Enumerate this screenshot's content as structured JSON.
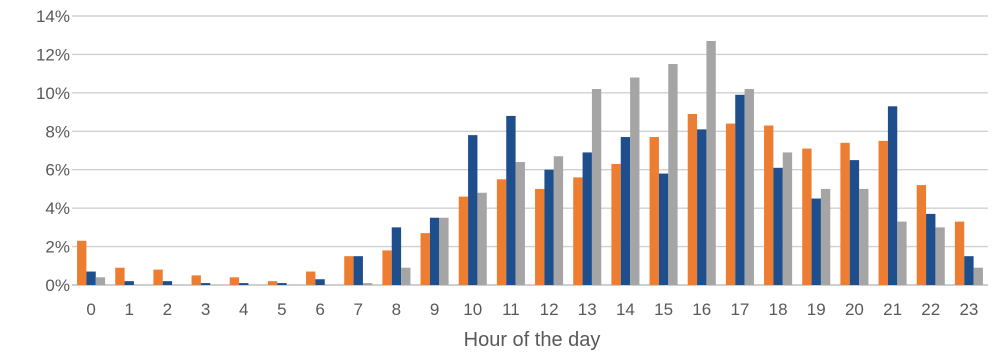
{
  "chart_data": {
    "type": "bar",
    "title": "",
    "xlabel": "Hour of the day",
    "ylabel": "",
    "ylim": [
      0,
      14
    ],
    "y_ticks": [
      0,
      2,
      4,
      6,
      8,
      10,
      12,
      14
    ],
    "y_tick_labels": [
      "0%",
      "2%",
      "4%",
      "6%",
      "8%",
      "10%",
      "12%",
      "14%"
    ],
    "grid": true,
    "legend": "none",
    "categories": [
      "0",
      "1",
      "2",
      "3",
      "4",
      "5",
      "6",
      "7",
      "8",
      "9",
      "10",
      "11",
      "12",
      "13",
      "14",
      "15",
      "16",
      "17",
      "18",
      "19",
      "20",
      "21",
      "22",
      "23"
    ],
    "series": [
      {
        "color": "#ED7D31",
        "values": [
          2.3,
          0.9,
          0.8,
          0.5,
          0.4,
          0.2,
          0.7,
          1.5,
          1.8,
          2.7,
          4.6,
          5.5,
          5.0,
          5.6,
          6.3,
          7.7,
          8.9,
          8.4,
          8.3,
          7.1,
          7.4,
          7.5,
          5.2,
          3.3
        ]
      },
      {
        "color": "#1F4E8C",
        "values": [
          0.7,
          0.2,
          0.2,
          0.1,
          0.1,
          0.1,
          0.3,
          1.5,
          3.0,
          3.5,
          7.8,
          8.8,
          6.0,
          6.9,
          7.7,
          5.8,
          8.1,
          9.9,
          6.1,
          4.5,
          6.5,
          9.3,
          3.7,
          1.5
        ]
      },
      {
        "color": "#A5A5A5",
        "values": [
          0.4,
          0.0,
          0.0,
          0.0,
          0.0,
          0.0,
          0.0,
          0.1,
          0.9,
          3.5,
          4.8,
          6.4,
          6.7,
          10.2,
          10.8,
          11.5,
          12.7,
          10.2,
          6.9,
          5.0,
          5.0,
          3.3,
          3.0,
          0.9
        ]
      }
    ]
  }
}
